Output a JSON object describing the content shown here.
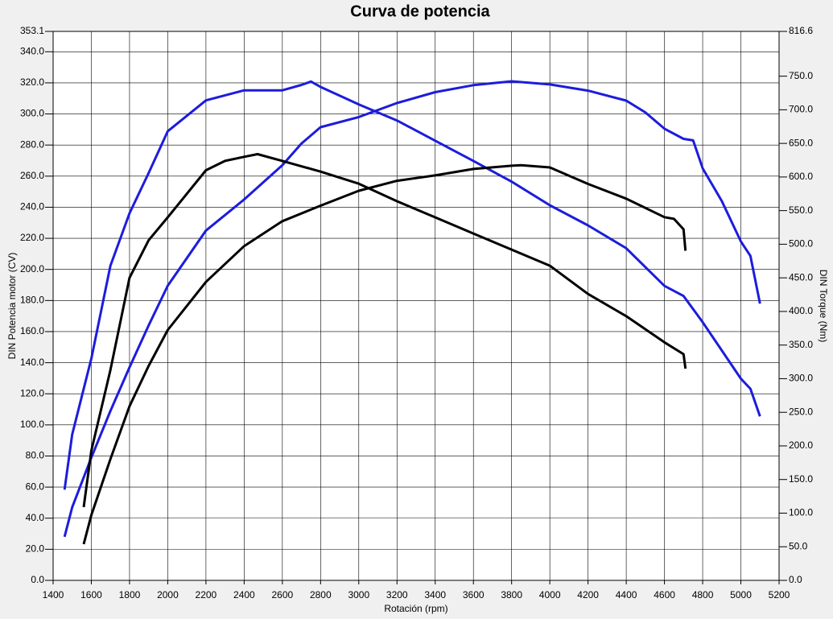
{
  "chart_data": {
    "type": "line",
    "title": "Curva de potencia",
    "x_label": "Rotación (rpm)",
    "y_label": "DIN Potencia motor (CV)",
    "y2_label": "DIN Torque (Nm)",
    "xlim": [
      1400,
      5200
    ],
    "xticks": [
      1400,
      1600,
      1800,
      2000,
      2200,
      2400,
      2600,
      2800,
      3000,
      3200,
      3400,
      3600,
      3800,
      4000,
      4200,
      4400,
      4600,
      4800,
      5000,
      5200
    ],
    "ylim": [
      0,
      353.1
    ],
    "yticks": [
      {
        "value": 0,
        "label": "0.0"
      },
      {
        "value": 20,
        "label": "20.0"
      },
      {
        "value": 40,
        "label": "40.0"
      },
      {
        "value": 60,
        "label": "60.0"
      },
      {
        "value": 80,
        "label": "80.0"
      },
      {
        "value": 100,
        "label": "100.0"
      },
      {
        "value": 120,
        "label": "120.0"
      },
      {
        "value": 140,
        "label": "140.0"
      },
      {
        "value": 160,
        "label": "160.0"
      },
      {
        "value": 180,
        "label": "180.0"
      },
      {
        "value": 200,
        "label": "200.0"
      },
      {
        "value": 220,
        "label": "220.0"
      },
      {
        "value": 240,
        "label": "240.0"
      },
      {
        "value": 260,
        "label": "260.0"
      },
      {
        "value": 280,
        "label": "280.0"
      },
      {
        "value": 300,
        "label": "300.0"
      },
      {
        "value": 320,
        "label": "320.0"
      },
      {
        "value": 340,
        "label": "340.0"
      },
      353.1
    ],
    "y2lim": [
      0,
      816.6
    ],
    "y2ticks": [
      {
        "value": 0,
        "label": "0.0"
      },
      {
        "value": 50,
        "label": "50.0"
      },
      {
        "value": 100,
        "label": "100.0"
      },
      {
        "value": 150,
        "label": "150.0"
      },
      {
        "value": 200,
        "label": "200.0"
      },
      {
        "value": 250,
        "label": "250.0"
      },
      {
        "value": 300,
        "label": "300.0"
      },
      {
        "value": 350,
        "label": "350.0"
      },
      {
        "value": 400,
        "label": "400.0"
      },
      {
        "value": 450,
        "label": "450.0"
      },
      {
        "value": 500,
        "label": "500.0"
      },
      {
        "value": 550,
        "label": "550.0"
      },
      {
        "value": 600,
        "label": "600.0"
      },
      {
        "value": 650,
        "label": "650.0"
      },
      {
        "value": 700,
        "label": "700.0"
      },
      {
        "value": 750,
        "label": "750.0"
      },
      816.6
    ],
    "grid": true,
    "series": [
      {
        "color": "#1c1cdc",
        "axis": "y",
        "x": [
          1460,
          1500,
          1600,
          1700,
          1800,
          1900,
          2000,
          2200,
          2400,
          2600,
          2700,
          2800,
          3000,
          3200,
          3400,
          3600,
          3800,
          4000,
          4200,
          4400,
          4500,
          4600,
          4700,
          4750,
          4800,
          4900,
          5000,
          5050,
          5100
        ],
        "values": [
          28,
          47,
          79,
          109,
          137,
          164,
          189.5,
          225,
          245,
          267,
          281,
          291.5,
          298,
          307,
          314,
          318.5,
          321,
          319,
          315,
          308.6,
          301,
          290.5,
          284,
          283,
          265,
          244,
          218,
          208.7,
          178
        ]
      },
      {
        "color": "#1c1cdc",
        "axis": "y2",
        "x": [
          1460,
          1500,
          1600,
          1700,
          1800,
          1900,
          2000,
          2200,
          2400,
          2600,
          2700,
          2750,
          2800,
          3000,
          3200,
          3400,
          3600,
          3800,
          4000,
          4200,
          4400,
          4600,
          4700,
          4800,
          5000,
          5050,
          5100
        ],
        "values": [
          135,
          217,
          330,
          468,
          546,
          606,
          668,
          714,
          729,
          729,
          737,
          742,
          734,
          708,
          684,
          654,
          624,
          593,
          558,
          528,
          494,
          438,
          423,
          384,
          300,
          285,
          244
        ]
      },
      {
        "color": "#000000",
        "axis": "y",
        "x": [
          1560,
          1600,
          1700,
          1800,
          1900,
          2000,
          2200,
          2400,
          2500,
          2600,
          2800,
          3000,
          3200,
          3400,
          3600,
          3800,
          3850,
          4000,
          4200,
          4400,
          4600,
          4650,
          4700,
          4710
        ],
        "values": [
          23.3,
          42,
          78,
          112,
          138,
          161,
          192,
          215,
          223,
          231,
          241,
          250.6,
          257,
          260.5,
          264.6,
          266.7,
          267,
          265.6,
          255,
          245.5,
          233.6,
          232.5,
          225.8,
          212
        ]
      },
      {
        "color": "#000000",
        "axis": "y2",
        "x": [
          1560,
          1600,
          1700,
          1800,
          1900,
          2000,
          2200,
          2300,
          2400,
          2470,
          2600,
          2800,
          3000,
          3200,
          3400,
          3600,
          3800,
          4000,
          4200,
          4400,
          4600,
          4700,
          4710
        ],
        "values": [
          109,
          193,
          313,
          450,
          506,
          540,
          610,
          624,
          630,
          634,
          624,
          608,
          590,
          564,
          540,
          516,
          492,
          468,
          426,
          393,
          354,
          336.5,
          315
        ]
      }
    ]
  }
}
